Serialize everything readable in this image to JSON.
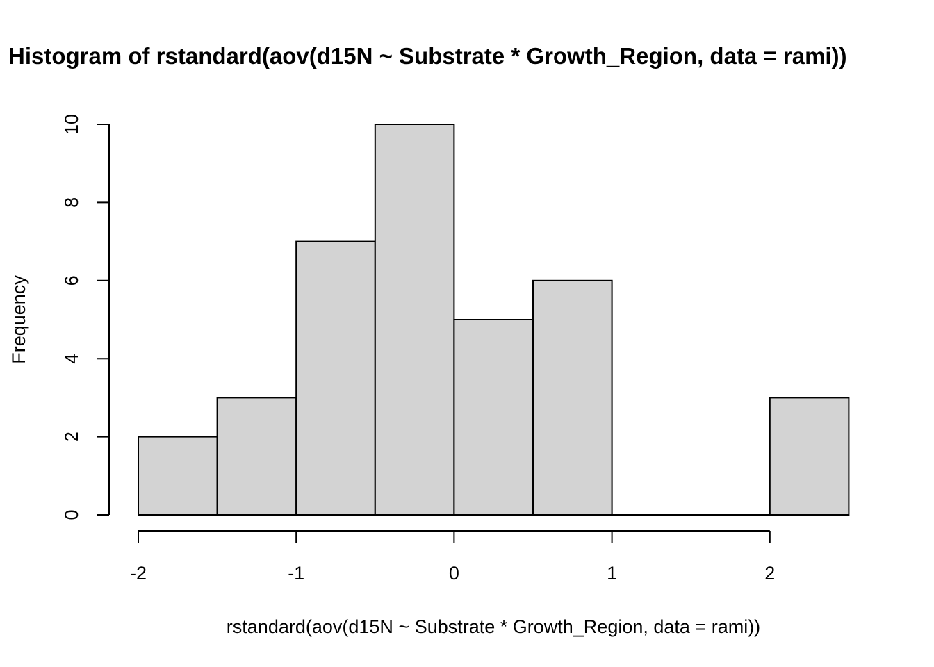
{
  "chart_data": {
    "type": "bar",
    "title": "Histogram of rstandard(aov(d15N ~ Substrate * Growth_Region, data = rami))",
    "xlabel": "rstandard(aov(d15N ~ Substrate * Growth_Region, data = rami))",
    "ylabel": "Frequency",
    "bins": [
      {
        "x0": -2.0,
        "x1": -1.5,
        "count": 2
      },
      {
        "x0": -1.5,
        "x1": -1.0,
        "count": 3
      },
      {
        "x0": -1.0,
        "x1": -0.5,
        "count": 7
      },
      {
        "x0": -0.5,
        "x1": 0.0,
        "count": 10
      },
      {
        "x0": 0.0,
        "x1": 0.5,
        "count": 5
      },
      {
        "x0": 0.5,
        "x1": 1.0,
        "count": 6
      },
      {
        "x0": 1.0,
        "x1": 1.5,
        "count": 0
      },
      {
        "x0": 1.5,
        "x1": 2.0,
        "count": 0
      },
      {
        "x0": 2.0,
        "x1": 2.5,
        "count": 3
      }
    ],
    "xlim": [
      -2.0,
      2.5
    ],
    "ylim": [
      0,
      10
    ],
    "x_ticks": [
      {
        "value": -2,
        "label": "-2"
      },
      {
        "value": -1,
        "label": "-1"
      },
      {
        "value": 0,
        "label": "0"
      },
      {
        "value": 1,
        "label": "1"
      },
      {
        "value": 2,
        "label": "2"
      }
    ],
    "y_ticks": [
      {
        "value": 0,
        "label": "0"
      },
      {
        "value": 2,
        "label": "2"
      },
      {
        "value": 4,
        "label": "4"
      },
      {
        "value": 6,
        "label": "6"
      },
      {
        "value": 8,
        "label": "8"
      },
      {
        "value": 10,
        "label": "10"
      }
    ],
    "grid": false,
    "bar_fill": "#d3d3d3",
    "bar_stroke": "#000000"
  }
}
